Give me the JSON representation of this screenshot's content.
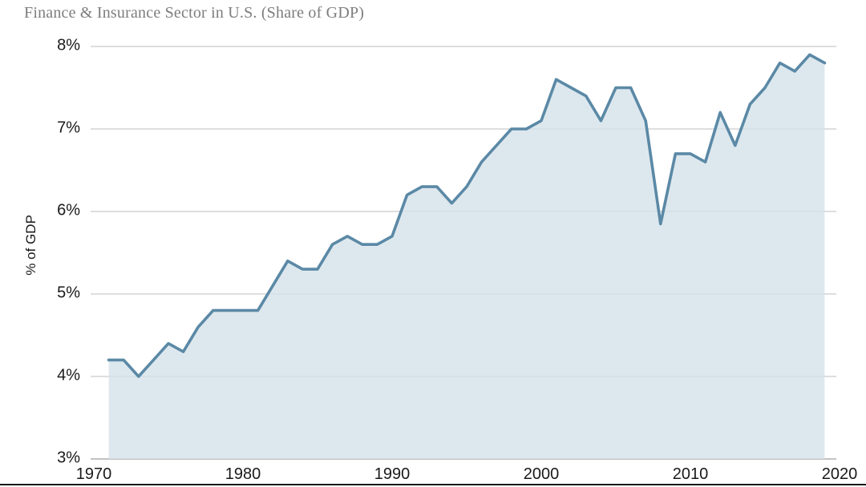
{
  "chart_data": {
    "type": "area",
    "title": "Finance & Insurance Sector in U.S. (Share of GDP)",
    "ylabel": "% of GDP",
    "xlabel": "",
    "legend": "none",
    "grid": "horizontal",
    "xlim": [
      1970,
      2020
    ],
    "ylim": [
      3,
      8
    ],
    "x_ticks": [
      "1970",
      "1980",
      "1990",
      "2000",
      "2010",
      "2020"
    ],
    "x_tick_values": [
      1970,
      1980,
      1990,
      2000,
      2010,
      2020
    ],
    "y_ticks": [
      "8%",
      "7%",
      "6%",
      "5%",
      "4%",
      "3%"
    ],
    "y_tick_values": [
      8,
      7,
      6,
      5,
      4,
      3
    ],
    "years": [
      1971,
      1972,
      1973,
      1974,
      1975,
      1976,
      1977,
      1978,
      1979,
      1980,
      1981,
      1982,
      1983,
      1984,
      1985,
      1986,
      1987,
      1988,
      1989,
      1990,
      1991,
      1992,
      1993,
      1994,
      1995,
      1996,
      1997,
      1998,
      1999,
      2000,
      2001,
      2002,
      2003,
      2004,
      2005,
      2006,
      2007,
      2008,
      2009,
      2010,
      2011,
      2012,
      2013,
      2014,
      2015,
      2016,
      2017,
      2018,
      2019
    ],
    "values": [
      4.2,
      4.2,
      4.0,
      4.2,
      4.4,
      4.3,
      4.6,
      4.8,
      4.8,
      4.8,
      4.8,
      5.1,
      5.4,
      5.3,
      5.3,
      5.6,
      5.7,
      5.6,
      5.6,
      5.7,
      6.2,
      6.3,
      6.3,
      6.1,
      6.3,
      6.6,
      6.8,
      7.0,
      7.0,
      7.1,
      7.6,
      7.5,
      7.4,
      7.1,
      7.5,
      7.5,
      7.1,
      5.85,
      6.7,
      6.7,
      6.6,
      7.2,
      6.8,
      7.3,
      7.5,
      7.8,
      7.7,
      7.9,
      7.8
    ],
    "line_color": "#5b89a6",
    "fill_color": "#d5e2ea",
    "grid_color": "#c9c9c9",
    "baseline_color": "#adadad",
    "title_color": "#7d7d7d",
    "tick_color": "#1a1a1a"
  }
}
